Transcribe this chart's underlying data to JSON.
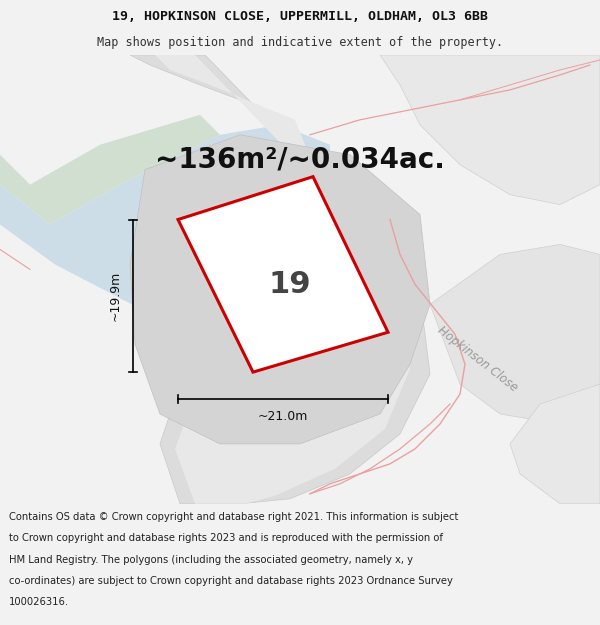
{
  "title_line1": "19, HOPKINSON CLOSE, UPPERMILL, OLDHAM, OL3 6BB",
  "title_line2": "Map shows position and indicative extent of the property.",
  "area_text": "~136m²/~0.034ac.",
  "label_19": "19",
  "dim_height": "~19.9m",
  "dim_width": "~21.0m",
  "street_label": "Hopkinson Close",
  "footer_text": "Contains OS data © Crown copyright and database right 2021. This information is subject to Crown copyright and database rights 2023 and is reproduced with the permission of HM Land Registry. The polygons (including the associated geometry, namely x, y co-ordinates) are subject to Crown copyright and database rights 2023 Ordnance Survey 100026316.",
  "bg_color": "#f2f2f2",
  "map_bg": "#efefef",
  "plot_fill": "#ffffff",
  "plot_stroke": "#cc0000",
  "water_fill": "#ccdde8",
  "green_fill": "#d0dfd0",
  "boundary_color": "#e8a0a0",
  "gray_road": "#d8d8d8",
  "light_gray": "#e4e4e4",
  "title_fontsize": 9.5,
  "subtitle_fontsize": 8.5,
  "area_fontsize": 20,
  "label_fontsize": 22,
  "dim_fontsize": 9,
  "footer_fontsize": 7.2,
  "street_fontsize": 8.5
}
